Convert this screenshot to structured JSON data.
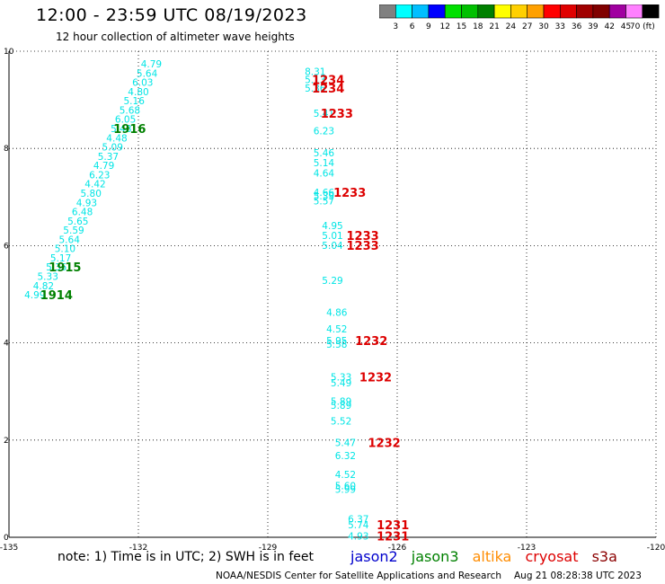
{
  "header": {
    "title": "12:00 - 23:59 UTC 08/19/2023",
    "subtitle": "12 hour collection of altimeter wave heights"
  },
  "scale": {
    "colors": [
      "#808080",
      "#00ffff",
      "#00bfff",
      "#0000ff",
      "#00e000",
      "#00c000",
      "#008000",
      "#ffff00",
      "#ffd000",
      "#ffa000",
      "#ff0000",
      "#e00000",
      "#a00000",
      "#800000",
      "#a000a0",
      "#ff80ff",
      "#000000"
    ],
    "labels": [
      "3",
      "6",
      "9",
      "12",
      "15",
      "18",
      "21",
      "24",
      "27",
      "30",
      "33",
      "36",
      "39",
      "42",
      "45",
      "70 (ft)"
    ]
  },
  "chart_data": {
    "type": "scatter",
    "xlim": [
      -135,
      -120
    ],
    "ylim": [
      0,
      10
    ],
    "x_ticks": [
      -135,
      -132,
      -129,
      -126,
      -123,
      -120
    ],
    "y_ticks": [
      0,
      2,
      4,
      6,
      8,
      10
    ],
    "grid": true,
    "series": [
      {
        "name": "jason3",
        "color_label": "#00e5e5",
        "color_time": "#008000",
        "points": [
          {
            "x": -134.4,
            "y": 4.99,
            "label": "4.99"
          },
          {
            "x": -134.2,
            "y": 5.18,
            "label": "4.82"
          },
          {
            "x": -134.1,
            "y": 5.37,
            "label": "5.33"
          },
          {
            "x": -133.9,
            "y": 5.56,
            "label": "5.35"
          },
          {
            "x": -133.8,
            "y": 5.75,
            "label": "5.17"
          },
          {
            "x": -133.7,
            "y": 5.94,
            "label": "5.10"
          },
          {
            "x": -133.6,
            "y": 6.13,
            "label": "5.64"
          },
          {
            "x": -133.5,
            "y": 6.32,
            "label": "5.59"
          },
          {
            "x": -133.4,
            "y": 6.51,
            "label": "5.65"
          },
          {
            "x": -133.3,
            "y": 6.7,
            "label": "6.48"
          },
          {
            "x": -133.2,
            "y": 6.89,
            "label": "4.93"
          },
          {
            "x": -133.1,
            "y": 7.08,
            "label": "5.80"
          },
          {
            "x": -133.0,
            "y": 7.27,
            "label": "4.42"
          },
          {
            "x": -132.9,
            "y": 7.46,
            "label": "6.23"
          },
          {
            "x": -132.8,
            "y": 7.65,
            "label": "4.79"
          },
          {
            "x": -132.7,
            "y": 7.84,
            "label": "5.37"
          },
          {
            "x": -132.6,
            "y": 8.03,
            "label": "5.09"
          },
          {
            "x": -132.5,
            "y": 8.22,
            "label": "4.48"
          },
          {
            "x": -132.4,
            "y": 8.41,
            "label": "5.48"
          },
          {
            "x": -132.3,
            "y": 8.6,
            "label": "6.05"
          },
          {
            "x": -132.2,
            "y": 8.79,
            "label": "5.68"
          },
          {
            "x": -132.1,
            "y": 8.98,
            "label": "5.16"
          },
          {
            "x": -132.0,
            "y": 9.17,
            "label": "4.80"
          },
          {
            "x": -131.9,
            "y": 9.36,
            "label": "6.03"
          },
          {
            "x": -131.8,
            "y": 9.55,
            "label": "5.64"
          },
          {
            "x": -131.7,
            "y": 9.74,
            "label": "4.79"
          }
        ],
        "times": [
          {
            "x": -133.9,
            "y": 4.99,
            "label": "1914"
          },
          {
            "x": -133.7,
            "y": 5.56,
            "label": "1915"
          },
          {
            "x": -132.2,
            "y": 8.41,
            "label": "1916"
          }
        ]
      },
      {
        "name": "s3a",
        "color_label": "#00e5e5",
        "color_time": "#dd0000",
        "points": [
          {
            "x": -126.9,
            "y": 0.03,
            "label": "4.93"
          },
          {
            "x": -126.9,
            "y": 0.26,
            "label": "5.74"
          },
          {
            "x": -126.9,
            "y": 0.38,
            "label": "6.37"
          },
          {
            "x": -127.2,
            "y": 0.99,
            "label": "5.99"
          },
          {
            "x": -127.2,
            "y": 1.06,
            "label": "5.60"
          },
          {
            "x": -127.2,
            "y": 1.29,
            "label": "4.52"
          },
          {
            "x": -127.2,
            "y": 1.68,
            "label": "6.32"
          },
          {
            "x": -127.2,
            "y": 1.95,
            "label": "5.47"
          },
          {
            "x": -127.3,
            "y": 2.39,
            "label": "5.52"
          },
          {
            "x": -127.3,
            "y": 2.72,
            "label": "5.89"
          },
          {
            "x": -127.3,
            "y": 2.8,
            "label": "5.89"
          },
          {
            "x": -127.3,
            "y": 3.18,
            "label": "5.49"
          },
          {
            "x": -127.3,
            "y": 3.3,
            "label": "5.33"
          },
          {
            "x": -127.4,
            "y": 3.97,
            "label": "5.58"
          },
          {
            "x": -127.4,
            "y": 4.05,
            "label": "5.95"
          },
          {
            "x": -127.4,
            "y": 4.29,
            "label": "4.52"
          },
          {
            "x": -127.4,
            "y": 4.63,
            "label": "4.86"
          },
          {
            "x": -127.5,
            "y": 5.29,
            "label": "5.29"
          },
          {
            "x": -127.5,
            "y": 6.01,
            "label": "5.04"
          },
          {
            "x": -127.5,
            "y": 6.21,
            "label": "5.01"
          },
          {
            "x": -127.5,
            "y": 6.41,
            "label": "4.95"
          },
          {
            "x": -127.7,
            "y": 6.92,
            "label": "5.57"
          },
          {
            "x": -127.7,
            "y": 7.02,
            "label": "5.39"
          },
          {
            "x": -127.7,
            "y": 7.1,
            "label": "4.66"
          },
          {
            "x": -127.7,
            "y": 7.5,
            "label": "4.64"
          },
          {
            "x": -127.7,
            "y": 7.71,
            "label": "5.14"
          },
          {
            "x": -127.7,
            "y": 7.91,
            "label": "5.46"
          },
          {
            "x": -127.7,
            "y": 8.36,
            "label": "6.23"
          },
          {
            "x": -127.7,
            "y": 8.72,
            "label": "5.41"
          },
          {
            "x": -127.9,
            "y": 9.24,
            "label": "5.36"
          },
          {
            "x": -127.9,
            "y": 9.42,
            "label": "5.13"
          },
          {
            "x": -127.9,
            "y": 9.58,
            "label": "8.31"
          }
        ],
        "times": [
          {
            "x": -126.1,
            "y": 0.03,
            "label": "1231"
          },
          {
            "x": -126.1,
            "y": 0.26,
            "label": "1231"
          },
          {
            "x": -126.3,
            "y": 1.95,
            "label": "1232"
          },
          {
            "x": -126.5,
            "y": 3.3,
            "label": "1232"
          },
          {
            "x": -126.6,
            "y": 4.05,
            "label": "1232"
          },
          {
            "x": -126.8,
            "y": 6.01,
            "label": "1233"
          },
          {
            "x": -126.8,
            "y": 6.21,
            "label": "1233"
          },
          {
            "x": -127.1,
            "y": 7.1,
            "label": "1233"
          },
          {
            "x": -127.4,
            "y": 8.72,
            "label": "1233"
          },
          {
            "x": -127.6,
            "y": 9.24,
            "label": "1234"
          },
          {
            "x": -127.6,
            "y": 9.42,
            "label": "1234"
          }
        ]
      }
    ]
  },
  "footer": {
    "note": "note:  1) Time is in UTC;  2) SWH is in feet",
    "satellites": [
      {
        "name": "jason2",
        "color": "#0000cc"
      },
      {
        "name": "jason3",
        "color": "#008000"
      },
      {
        "name": "altika",
        "color": "#ff8c00"
      },
      {
        "name": "cryosat",
        "color": "#dd0000"
      },
      {
        "name": "s3a",
        "color": "#8b0000"
      }
    ],
    "credit": "NOAA/NESDIS Center for Satellite Applications and Research",
    "timestamp": "Aug 21 08:28:38 UTC 2023"
  }
}
